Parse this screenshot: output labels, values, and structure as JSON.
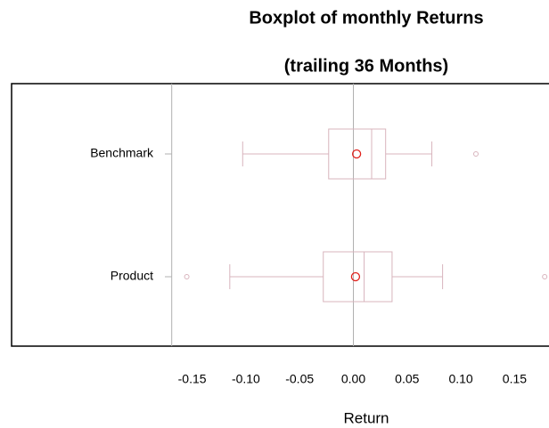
{
  "chart_data": {
    "type": "boxplot",
    "title": "Boxplot of monthly Returns",
    "subtitle": "(trailing 36 Months)",
    "x_label": "Return",
    "categories": [
      "Benchmark",
      "Product"
    ],
    "boxes": [
      {
        "whisker_low": -0.103,
        "q1": -0.023,
        "median": 0.017,
        "q3": 0.03,
        "whisker_high": 0.073,
        "outliers": [
          0.114
        ],
        "mean": 0.003
      },
      {
        "whisker_low": -0.115,
        "q1": -0.028,
        "median": 0.01,
        "q3": 0.036,
        "whisker_high": 0.083,
        "outliers": [
          -0.155,
          0.178
        ],
        "mean": 0.002
      }
    ],
    "box_color": "#d8b4bd",
    "mean_color": "#e0201b",
    "ref_line_color": "#b0b0b0",
    "ref_lines": [
      -0.169,
      0
    ],
    "xlim": [
      -0.318,
      0.182
    ],
    "xticks": [
      -0.15,
      {
        "value": -0.1,
        "label": "-0.10"
      },
      -0.05,
      {
        "value": 0,
        "label": "0.00"
      },
      0.05,
      {
        "value": 0.1,
        "label": "0.10"
      },
      0.15
    ]
  }
}
